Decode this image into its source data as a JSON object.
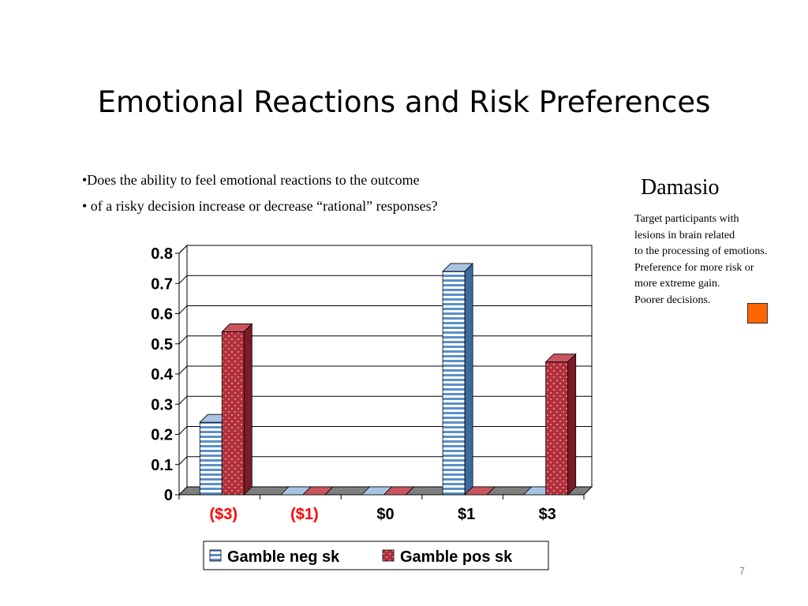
{
  "slide": {
    "title": "Emotional Reactions and Risk Preferences",
    "bullets": [
      "•Does the ability to feel emotional reactions to the outcome",
      "• of a risky decision increase or decrease “rational” responses?"
    ],
    "side_heading": "Damasio",
    "side_note": [
      "Target participants with",
      "lesions in brain related",
      "to the processing of emotions.",
      "Preference for more risk or",
      "more extreme gain.",
      "Poorer decisions."
    ],
    "page_number": "7",
    "accent_color": "#ff6600"
  },
  "chart_data": {
    "type": "bar",
    "title": "",
    "xlabel": "",
    "ylabel": "",
    "categories": [
      "($3)",
      "($1)",
      "$0",
      "$1",
      "$3"
    ],
    "category_colors": [
      "#ff0000",
      "#ff0000",
      "#000000",
      "#000000",
      "#000000"
    ],
    "series": [
      {
        "name": "Gamble neg sk",
        "values": [
          0.24,
          0,
          0,
          0.74,
          0
        ],
        "color": "#5b8fc9"
      },
      {
        "name": "Gamble pos sk",
        "values": [
          0.54,
          0,
          0,
          0,
          0.44
        ],
        "color": "#b22f3b"
      }
    ],
    "ylim": [
      0,
      0.8
    ],
    "yticks": [
      "0",
      "0.1",
      "0.2",
      "0.3",
      "0.4",
      "0.5",
      "0.6",
      "0.7",
      "0.8"
    ],
    "grid": true,
    "legend_position": "bottom",
    "style": "3d-clustered-column"
  }
}
